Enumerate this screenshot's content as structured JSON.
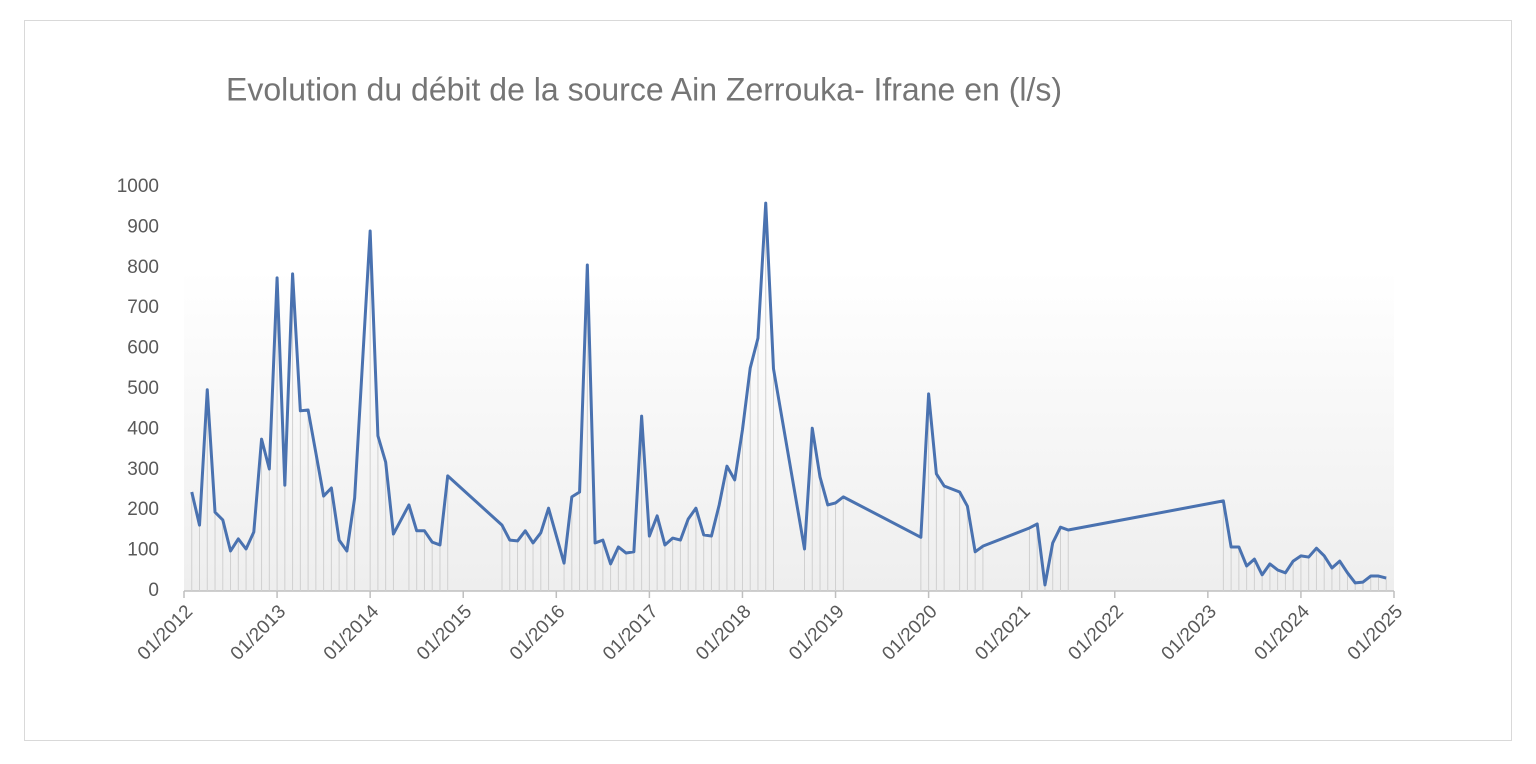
{
  "chart_data": {
    "type": "line",
    "title": "Evolution du débit de la source Ain Zerrouka- Ifrane en (l/s)",
    "x": [
      "02/2012",
      "03/2012",
      "04/2012",
      "05/2012",
      "06/2012",
      "07/2012",
      "08/2012",
      "09/2012",
      "10/2012",
      "11/2012",
      "12/2012",
      "01/2013",
      "02/2013",
      "03/2013",
      "04/2013",
      "05/2013",
      "06/2013",
      "07/2013",
      "08/2013",
      "09/2013",
      "10/2013",
      "11/2013",
      "01/2014",
      "02/2014",
      "03/2014",
      "04/2014",
      "06/2014",
      "07/2014",
      "08/2014",
      "09/2014",
      "10/2014",
      "11/2014",
      "06/2015",
      "07/2015",
      "08/2015",
      "09/2015",
      "10/2015",
      "11/2015",
      "12/2015",
      "02/2016",
      "03/2016",
      "04/2016",
      "05/2016",
      "06/2016",
      "07/2016",
      "08/2016",
      "09/2016",
      "10/2016",
      "11/2016",
      "12/2016",
      "01/2017",
      "02/2017",
      "03/2017",
      "04/2017",
      "05/2017",
      "06/2017",
      "07/2017",
      "08/2017",
      "09/2017",
      "10/2017",
      "11/2017",
      "12/2017",
      "01/2018",
      "02/2018",
      "03/2018",
      "04/2018",
      "05/2018",
      "09/2018",
      "10/2018",
      "11/2018",
      "12/2018",
      "01/2019",
      "02/2019",
      "12/2019",
      "01/2020",
      "02/2020",
      "03/2020",
      "05/2020",
      "06/2020",
      "07/2020",
      "08/2020",
      "02/2021",
      "03/2021",
      "04/2021",
      "05/2021",
      "06/2021",
      "07/2021",
      "03/2023",
      "04/2023",
      "05/2023",
      "06/2023",
      "07/2023",
      "08/2023",
      "09/2023",
      "10/2023",
      "11/2023",
      "12/2023",
      "01/2024",
      "02/2024",
      "03/2024",
      "04/2024",
      "05/2024",
      "06/2024",
      "07/2024",
      "08/2024",
      "09/2024",
      "10/2024",
      "11/2024",
      "12/2024"
    ],
    "series": [
      {
        "color": "#4a72b0",
        "values": [
          245,
          163,
          498,
          195,
          176,
          99,
          129,
          104,
          146,
          376,
          302,
          775,
          262,
          785,
          446,
          448,
          342,
          235,
          255,
          126,
          99,
          230,
          891,
          384,
          319,
          141,
          213,
          149,
          149,
          121,
          114,
          285,
          163,
          126,
          124,
          149,
          119,
          144,
          205,
          69,
          233,
          245,
          807,
          119,
          126,
          67,
          109,
          94,
          97,
          433,
          136,
          186,
          114,
          131,
          126,
          178,
          205,
          139,
          136,
          213,
          309,
          275,
          399,
          552,
          626,
          960,
          550,
          104,
          403,
          282,
          213,
          218,
          233,
          133,
          488,
          290,
          260,
          245,
          210,
          97,
          111,
          156,
          166,
          15,
          119,
          158,
          151,
          223,
          109,
          109,
          62,
          79,
          40,
          67,
          52,
          45,
          74,
          87,
          84,
          106,
          87,
          57,
          74,
          45,
          20,
          22,
          37,
          37,
          32
        ]
      }
    ],
    "xlim": [
      "01/2012",
      "01/2025"
    ],
    "xticks": [
      "01/2012",
      "01/2013",
      "01/2014",
      "01/2015",
      "01/2016",
      "01/2017",
      "01/2018",
      "01/2019",
      "01/2020",
      "01/2021",
      "01/2022",
      "01/2023",
      "01/2024",
      "01/2025"
    ],
    "ylim": [
      0,
      1000
    ],
    "yticks": [
      0,
      100,
      200,
      300,
      400,
      500,
      600,
      700,
      800,
      900,
      1000
    ],
    "drop_lines": true
  }
}
